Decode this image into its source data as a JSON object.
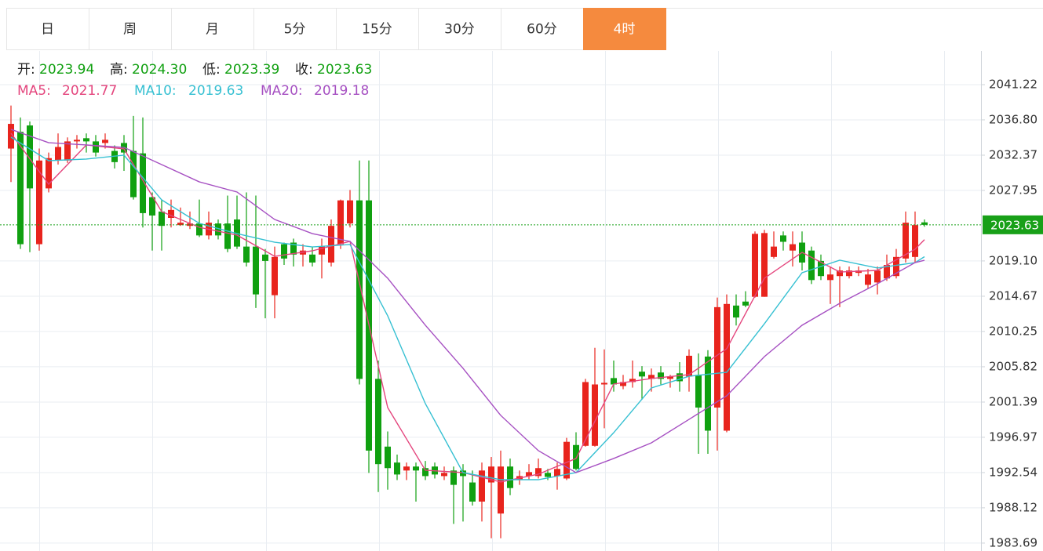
{
  "tabs": [
    "日",
    "周",
    "月",
    "5分",
    "15分",
    "30分",
    "60分",
    "4时"
  ],
  "active_tab": 7,
  "ohlc_header": [
    {
      "label": "开:",
      "value": "2023.94"
    },
    {
      "label": "高:",
      "value": "2024.30"
    },
    {
      "label": "低:",
      "value": "2023.39"
    },
    {
      "label": "收:",
      "value": "2023.63"
    }
  ],
  "chart_data": {
    "type": "candlestick",
    "up_color": "#e8241d",
    "down_color": "#10a010",
    "ylim": [
      1982.7,
      2045.45
    ],
    "yticks": [
      {
        "value": 1983.69,
        "label": "1983.69"
      },
      1988.12,
      1992.54,
      1996.97,
      2001.39,
      2005.82,
      2010.25,
      2014.67,
      {
        "value": 2019.1,
        "label": "2019.10"
      },
      2027.95,
      2032.37,
      {
        "value": 2036.8,
        "label": "2036.80"
      },
      2041.22
    ],
    "grid": true,
    "last_price": 2023.63,
    "last_price_color": "#18a018",
    "open": [
      2033.2,
      2035.3,
      2036.1,
      2021.2,
      2028.2,
      2031.7,
      2031.7,
      2034.1,
      2034.5,
      2034.1,
      2033.9,
      2032.9,
      2033.9,
      2032.9,
      2032.6,
      2027.1,
      2025.3,
      2024.5,
      2023.6,
      2023.5,
      2023.8,
      2022.3,
      2023.8,
      2023.8,
      2024.3,
      2020.9,
      2020.9,
      2019.9,
      2014.8,
      2021.2,
      2021.4,
      2019.9,
      2019.9,
      2019.9,
      2018.9,
      2021.2,
      2023.8,
      2026.7,
      2026.7,
      2004.3,
      1995.8,
      1993.8,
      1992.8,
      1993.3,
      1993.1,
      1993.3,
      1992.1,
      1992.8,
      1992.8,
      1991.3,
      1988.9,
      1991.3,
      1987.4,
      1993.3,
      1991.6,
      1992.1,
      1992.1,
      1992.5,
      1992.1,
      1991.8,
      1996.0,
      1995.9,
      1995.9,
      2003.6,
      2004.4,
      2003.4,
      2003.9,
      2005.2,
      2004.3,
      2005.1,
      2004.3,
      2005.0,
      2004.6,
      2004.8,
      2007.1,
      2000.7,
      1997.8,
      2013.5,
      2014.0,
      2014.6,
      2014.6,
      2019.6,
      2022.3,
      2020.4,
      2021.4,
      2020.4,
      2019.1,
      2016.7,
      2017.2,
      2017.2,
      2017.6,
      2016.1,
      2016.4,
      2016.9,
      2017.2,
      2019.4,
      2019.6,
      2023.94
    ],
    "close": [
      2036.3,
      2021.2,
      2028.2,
      2031.7,
      2032.0,
      2033.4,
      2034.1,
      2034.3,
      2034.1,
      2032.7,
      2034.3,
      2031.5,
      2032.7,
      2027.1,
      2025.1,
      2024.8,
      2023.5,
      2025.5,
      2023.9,
      2023.8,
      2022.3,
      2023.9,
      2022.3,
      2020.6,
      2020.9,
      2018.9,
      2014.9,
      2019.1,
      2019.6,
      2019.4,
      2019.9,
      2020.4,
      2018.9,
      2020.9,
      2023.5,
      2026.7,
      2026.7,
      2004.3,
      1995.3,
      1993.6,
      1993.1,
      1992.3,
      1993.3,
      1992.8,
      1992.1,
      1992.3,
      1992.5,
      1991.0,
      1992.1,
      1988.9,
      1992.8,
      1993.3,
      1993.3,
      1990.6,
      1992.1,
      1992.6,
      1993.1,
      1992.0,
      1993.0,
      1996.4,
      1993.0,
      2003.9,
      2003.6,
      2003.8,
      2003.6,
      2003.9,
      2004.3,
      2004.6,
      2004.8,
      2004.3,
      2004.6,
      2004.0,
      2007.2,
      2000.7,
      1997.8,
      2013.3,
      2013.7,
      2012.0,
      2013.5,
      2022.5,
      2022.6,
      2020.9,
      2021.5,
      2021.2,
      2018.9,
      2016.7,
      2017.2,
      2017.4,
      2017.9,
      2017.9,
      2017.9,
      2017.4,
      2017.9,
      2018.6,
      2019.6,
      2023.9,
      2023.6,
      2023.63
    ],
    "high": [
      2038.6,
      2037.1,
      2036.6,
      2033.2,
      2032.7,
      2035.1,
      2034.6,
      2034.9,
      2035.1,
      2034.9,
      2035.1,
      2033.6,
      2034.9,
      2037.3,
      2037.1,
      2027.7,
      2026.8,
      2026.8,
      2025.8,
      2025.3,
      2026.8,
      2025.3,
      2024.3,
      2027.3,
      2027.3,
      2027.7,
      2027.3,
      2020.6,
      2020.9,
      2021.4,
      2021.9,
      2021.2,
      2020.9,
      2021.9,
      2024.3,
      2026.8,
      2028.0,
      2031.7,
      2031.7,
      2006.6,
      1997.7,
      1994.8,
      1993.8,
      1993.8,
      1994.0,
      1993.8,
      1993.3,
      1993.3,
      1993.6,
      1992.8,
      1993.8,
      1994.5,
      1995.3,
      1994.3,
      1992.8,
      1993.6,
      1994.3,
      1993.0,
      1993.8,
      1996.9,
      1997.6,
      2004.3,
      2008.2,
      2008.0,
      2006.6,
      2004.8,
      2006.6,
      2005.9,
      2005.6,
      2005.9,
      2004.8,
      2006.4,
      2008.0,
      2007.5,
      2007.9,
      2014.5,
      2014.9,
      2014.9,
      2015.3,
      2022.8,
      2023.0,
      2022.8,
      2022.8,
      2022.8,
      2022.8,
      2020.9,
      2019.9,
      2018.4,
      2018.4,
      2018.4,
      2018.4,
      2018.1,
      2018.4,
      2019.9,
      2020.6,
      2025.3,
      2025.3,
      2024.3
    ],
    "low": [
      2029.0,
      2020.6,
      2020.2,
      2020.4,
      2027.7,
      2031.2,
      2031.4,
      2033.2,
      2032.7,
      2032.2,
      2033.2,
      2030.7,
      2030.4,
      2026.8,
      2023.3,
      2020.4,
      2020.4,
      2023.3,
      2023.5,
      2023.1,
      2022.1,
      2021.8,
      2021.8,
      2020.2,
      2020.6,
      2018.4,
      2013.2,
      2011.9,
      2011.9,
      2018.6,
      2018.4,
      2018.4,
      2018.4,
      2016.9,
      2018.4,
      2020.6,
      2023.3,
      2003.6,
      1992.5,
      1990.1,
      1990.4,
      1991.6,
      1991.6,
      1988.9,
      1991.6,
      1991.8,
      1991.6,
      1986.1,
      1986.4,
      1988.4,
      1986.4,
      1984.3,
      1984.3,
      1989.7,
      1991.0,
      1991.6,
      1991.8,
      1991.6,
      1990.4,
      1991.6,
      1992.8,
      1995.8,
      1995.8,
      1998.1,
      2002.7,
      2003.0,
      2003.2,
      2001.7,
      2002.7,
      2003.6,
      2003.2,
      2002.7,
      2002.7,
      1994.9,
      1994.9,
      1995.3,
      1997.6,
      2011.0,
      2013.3,
      2014.5,
      2014.6,
      2019.4,
      2020.4,
      2018.4,
      2017.9,
      2016.2,
      2016.7,
      2013.7,
      2013.3,
      2016.9,
      2017.2,
      2015.6,
      2014.9,
      2016.6,
      2016.9,
      2018.9,
      2018.9,
      2023.39
    ],
    "series": [
      {
        "name": "MA5:",
        "last": 2021.77,
        "color": "#e4457d",
        "x": [
          0,
          4,
          8,
          12,
          16,
          20,
          24,
          28,
          32,
          36,
          40,
          44,
          48,
          52,
          56,
          60,
          64,
          68,
          72,
          76,
          80,
          84,
          88,
          92,
          96,
          97
        ],
        "values": [
          2035.12,
          2028.73,
          2033.65,
          2033.16,
          2025.29,
          2023.32,
          2022.34,
          2019.68,
          2020.37,
          2021.55,
          2000.7,
          1992.83,
          1992.54,
          1991.36,
          1992.34,
          1994.31,
          2003.65,
          2004.34,
          2004.83,
          2008.08,
          2016.93,
          2020.17,
          2017.71,
          2017.91,
          2020.57,
          2021.77
        ]
      },
      {
        "name": "MA10:",
        "last": 2019.63,
        "color": "#36c0d2",
        "x": [
          0,
          4,
          8,
          12,
          16,
          20,
          24,
          28,
          32,
          36,
          40,
          44,
          48,
          52,
          56,
          60,
          64,
          68,
          72,
          76,
          80,
          84,
          88,
          92,
          96,
          97
        ],
        "values": [
          2034.63,
          2031.68,
          2031.88,
          2032.37,
          2026.76,
          2023.81,
          2022.53,
          2021.45,
          2020.86,
          2021.16,
          2012.21,
          2001.19,
          1992.54,
          1991.65,
          1991.65,
          1992.54,
          1997.55,
          2003.16,
          2004.63,
          2005.13,
          2011.22,
          2017.62,
          2019.19,
          2018.21,
          2018.89,
          2019.63
        ]
      },
      {
        "name": "MA20:",
        "last": 2019.18,
        "color": "#a650c2",
        "x": [
          0,
          4,
          8,
          12,
          16,
          20,
          24,
          28,
          32,
          36,
          40,
          44,
          48,
          52,
          56,
          60,
          64,
          68,
          72,
          76,
          80,
          84,
          88,
          92,
          96,
          97
        ],
        "values": [
          2035.61,
          2033.94,
          2033.65,
          2033.35,
          2031.19,
          2029.02,
          2027.75,
          2024.3,
          2022.53,
          2021.55,
          2016.93,
          2011.03,
          2005.62,
          1999.72,
          1995.29,
          1992.54,
          1994.31,
          1996.27,
          1999.22,
          2002.18,
          2007.09,
          2011.03,
          2013.78,
          2016.24,
          2018.89,
          2019.18
        ]
      }
    ]
  }
}
